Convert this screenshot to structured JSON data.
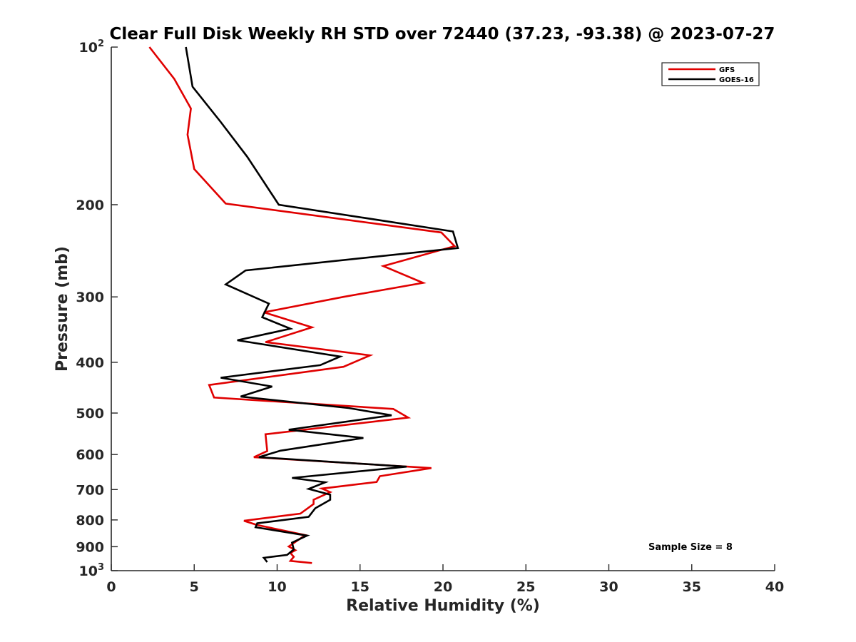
{
  "chart_data": {
    "type": "line",
    "title": "Clear Full Disk Weekly RH STD over 72440 (37.23, -93.38) @ 2023-07-27",
    "xlabel": "Relative Humidity (%)",
    "ylabel": "Pressure (mb)",
    "xlim": [
      0,
      40
    ],
    "ylim": [
      100,
      1000
    ],
    "y_scale": "log",
    "y_reversed": true,
    "x_ticks": [
      "0",
      "5",
      "10",
      "15",
      "20",
      "25",
      "30",
      "35",
      "40"
    ],
    "y_ticks": [
      {
        "value": 100,
        "base": "10",
        "exp": "2"
      },
      {
        "value": 200,
        "label": "200"
      },
      {
        "value": 300,
        "label": "300"
      },
      {
        "value": 400,
        "label": "400"
      },
      {
        "value": 500,
        "label": "500"
      },
      {
        "value": 600,
        "label": "600"
      },
      {
        "value": 700,
        "label": "700"
      },
      {
        "value": 800,
        "label": "800"
      },
      {
        "value": 900,
        "label": "900"
      },
      {
        "value": 1000,
        "base": "10",
        "exp": "3"
      }
    ],
    "grid": false,
    "legend_position": "top-right",
    "annotation": "Sample Size = 8",
    "series": [
      {
        "name": "GFS",
        "color": "#e00000",
        "points": [
          [
            2.3,
            100
          ],
          [
            3.8,
            115
          ],
          [
            4.8,
            131
          ],
          [
            4.6,
            147
          ],
          [
            5.0,
            171
          ],
          [
            6.9,
            199
          ],
          [
            19.9,
            226
          ],
          [
            20.7,
            240
          ],
          [
            16.4,
            262
          ],
          [
            18.8,
            282
          ],
          [
            14.0,
            300
          ],
          [
            9.2,
            321
          ],
          [
            12.1,
            343
          ],
          [
            9.3,
            366
          ],
          [
            15.6,
            388
          ],
          [
            14.0,
            408
          ],
          [
            5.9,
            442
          ],
          [
            6.2,
            467
          ],
          [
            17.0,
            491
          ],
          [
            17.9,
            510
          ],
          [
            9.3,
            549
          ],
          [
            9.4,
            591
          ],
          [
            8.6,
            607
          ],
          [
            19.3,
            637
          ],
          [
            16.2,
            660
          ],
          [
            16.0,
            677
          ],
          [
            12.7,
            697
          ],
          [
            13.2,
            708
          ],
          [
            12.2,
            732
          ],
          [
            12.2,
            746
          ],
          [
            11.4,
            778
          ],
          [
            8.0,
            803
          ],
          [
            8.8,
            818
          ],
          [
            11.7,
            855
          ],
          [
            10.7,
            899
          ],
          [
            11.1,
            914
          ],
          [
            10.8,
            925
          ],
          [
            11.0,
            941
          ],
          [
            10.8,
            958
          ],
          [
            12.1,
            967
          ]
        ]
      },
      {
        "name": "GOES-16",
        "color": "#000000",
        "points": [
          [
            4.5,
            100
          ],
          [
            4.9,
            119
          ],
          [
            6.6,
            139
          ],
          [
            8.2,
            162
          ],
          [
            9.2,
            181
          ],
          [
            10.1,
            200
          ],
          [
            20.6,
            225
          ],
          [
            20.9,
            242
          ],
          [
            8.1,
            267
          ],
          [
            6.9,
            284
          ],
          [
            9.5,
            309
          ],
          [
            9.1,
            328
          ],
          [
            10.8,
            345
          ],
          [
            7.6,
            363
          ],
          [
            13.8,
            390
          ],
          [
            12.6,
            405
          ],
          [
            6.6,
            428
          ],
          [
            9.7,
            445
          ],
          [
            7.8,
            465
          ],
          [
            14.3,
            489
          ],
          [
            16.9,
            505
          ],
          [
            10.7,
            538
          ],
          [
            15.2,
            558
          ],
          [
            10.2,
            590
          ],
          [
            8.9,
            607
          ],
          [
            17.8,
            633
          ],
          [
            10.9,
            665
          ],
          [
            12.9,
            678
          ],
          [
            11.9,
            698
          ],
          [
            13.2,
            716
          ],
          [
            13.2,
            732
          ],
          [
            12.3,
            760
          ],
          [
            11.9,
            789
          ],
          [
            8.8,
            812
          ],
          [
            8.7,
            826
          ],
          [
            11.8,
            857
          ],
          [
            10.9,
            884
          ],
          [
            11.0,
            911
          ],
          [
            10.6,
            933
          ],
          [
            9.2,
            945
          ],
          [
            9.4,
            963
          ]
        ]
      }
    ]
  }
}
